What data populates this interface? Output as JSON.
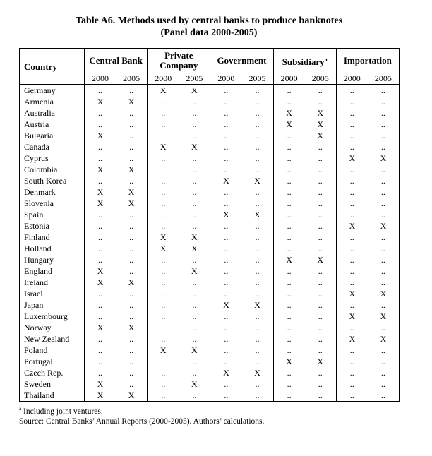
{
  "title": "Table A6. Methods used by central banks to produce banknotes",
  "subtitle": "(Panel data 2000-2005)",
  "table": {
    "country_header": "Country",
    "groups": [
      {
        "name": "Central Bank",
        "years": [
          "2000",
          "2005"
        ]
      },
      {
        "name": "Private Company",
        "years": [
          "2000",
          "2005"
        ]
      },
      {
        "name": "Government",
        "years": [
          "2000",
          "2005"
        ]
      },
      {
        "name": "Subsidiary",
        "note": "a",
        "years": [
          "2000",
          "2005"
        ]
      },
      {
        "name": "Importation",
        "years": [
          "2000",
          "2005"
        ]
      }
    ],
    "rows": [
      [
        "Germany",
        "..",
        "..",
        "X",
        "X",
        "..",
        "..",
        "..",
        "..",
        "..",
        ".."
      ],
      [
        "Armenia",
        "X",
        "X",
        "..",
        "..",
        "..",
        "..",
        "..",
        "..",
        "..",
        ".."
      ],
      [
        "Australia",
        "..",
        "..",
        "..",
        "..",
        "..",
        "..",
        "X",
        "X",
        "..",
        ".."
      ],
      [
        "Austria",
        "..",
        "..",
        "..",
        "..",
        "..",
        "..",
        "X",
        "X",
        "..",
        ".."
      ],
      [
        "Bulgaria",
        "X",
        "..",
        "..",
        "..",
        "..",
        "..",
        "..",
        "X",
        "..",
        ".."
      ],
      [
        "Canada",
        "..",
        "..",
        "X",
        "X",
        "..",
        "..",
        "..",
        "..",
        "..",
        ".."
      ],
      [
        "Cyprus",
        "..",
        "..",
        "..",
        "..",
        "..",
        "..",
        "..",
        "..",
        "X",
        "X"
      ],
      [
        "Colombia",
        "X",
        "X",
        "..",
        "..",
        "..",
        "..",
        "..",
        "..",
        "..",
        ".."
      ],
      [
        "South Korea",
        "..",
        "..",
        "..",
        "..",
        "X",
        "X",
        "..",
        "..",
        "..",
        ".."
      ],
      [
        "Denmark",
        "X",
        "X",
        "..",
        "..",
        "..",
        "..",
        "..",
        "..",
        "..",
        ".."
      ],
      [
        "Slovenia",
        "X",
        "X",
        "..",
        "..",
        "..",
        "..",
        "..",
        "..",
        "..",
        ".."
      ],
      [
        "Spain",
        "..",
        "..",
        "..",
        "..",
        "X",
        "X",
        "..",
        "..",
        "..",
        ".."
      ],
      [
        "Estonia",
        "..",
        "..",
        "..",
        "..",
        "..",
        "..",
        "..",
        "..",
        "X",
        "X"
      ],
      [
        "Finland",
        "..",
        "..",
        "X",
        "X",
        "..",
        "..",
        "..",
        "..",
        "..",
        ".."
      ],
      [
        "Holland",
        "..",
        "..",
        "X",
        "X",
        "..",
        "..",
        "..",
        "..",
        "..",
        ".."
      ],
      [
        "Hungary",
        "..",
        "..",
        "..",
        "..",
        "..",
        "..",
        "X",
        "X",
        "..",
        ".."
      ],
      [
        "England",
        "X",
        "..",
        "..",
        "X",
        "..",
        "..",
        "..",
        "..",
        "..",
        ".."
      ],
      [
        "Ireland",
        "X",
        "X",
        "..",
        "..",
        "..",
        "..",
        "..",
        "..",
        "..",
        ".."
      ],
      [
        "Israel",
        "..",
        "..",
        "..",
        "..",
        "..",
        "..",
        "..",
        "..",
        "X",
        "X"
      ],
      [
        "Japan",
        "..",
        "..",
        "..",
        "..",
        "X",
        "X",
        "..",
        "..",
        "..",
        ".."
      ],
      [
        "Luxembourg",
        "..",
        "..",
        "..",
        "..",
        "..",
        "..",
        "..",
        "..",
        "X",
        "X"
      ],
      [
        "Norway",
        "X",
        "X",
        "..",
        "..",
        "..",
        "..",
        "..",
        "..",
        "..",
        ".."
      ],
      [
        "New Zealand",
        "..",
        "..",
        "..",
        "..",
        "..",
        "..",
        "..",
        "..",
        "X",
        "X"
      ],
      [
        "Poland",
        "..",
        "..",
        "X",
        "X",
        "..",
        "..",
        "..",
        "..",
        "..",
        ".."
      ],
      [
        "Portugal",
        "..",
        "..",
        "..",
        "..",
        "..",
        "..",
        "X",
        "X",
        "..",
        ".."
      ],
      [
        "Czech Rep.",
        "..",
        "..",
        "..",
        "..",
        "X",
        "X",
        "..",
        "..",
        "..",
        ".."
      ],
      [
        "Sweden",
        "X",
        "..",
        "..",
        "X",
        "..",
        "..",
        "..",
        "..",
        "..",
        ".."
      ],
      [
        "Thailand",
        "X",
        "X",
        "..",
        "..",
        "..",
        "..",
        "..",
        "..",
        "..",
        ".."
      ]
    ]
  },
  "footnote": {
    "mark": "a",
    "text": "Including joint ventures."
  },
  "source": "Source: Central Banks’ Annual Reports (2000-2005). Authors’ calculations."
}
